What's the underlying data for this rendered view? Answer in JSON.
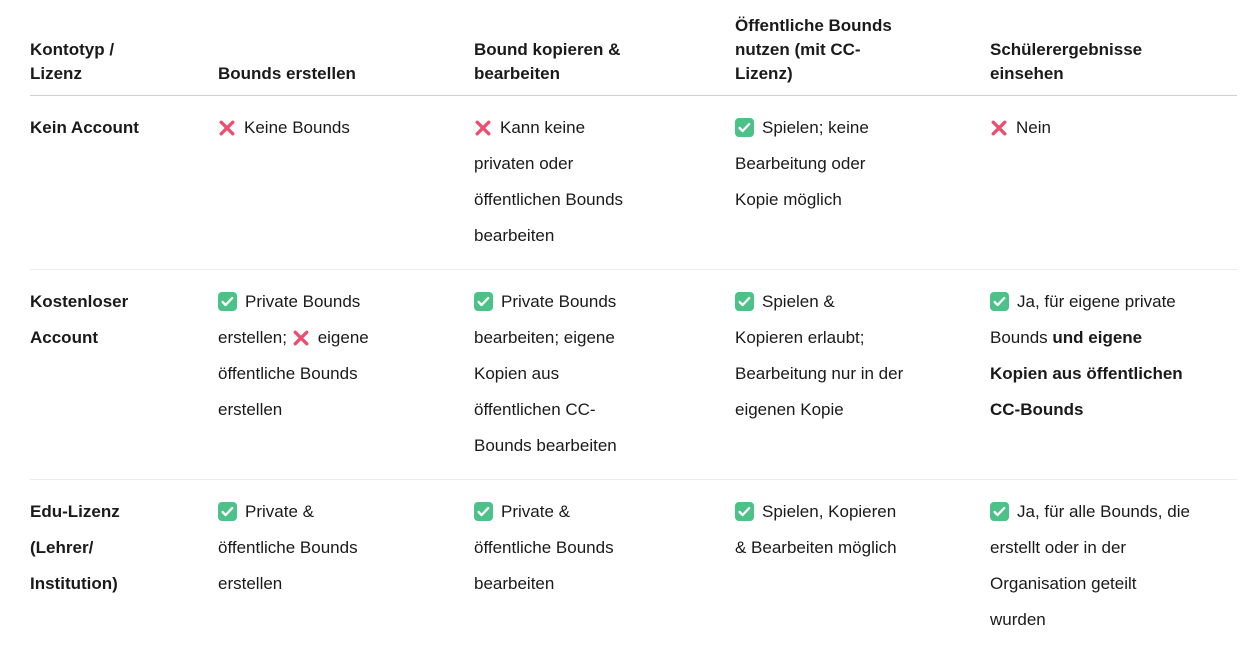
{
  "colors": {
    "background": "#ffffff",
    "text": "#1a1a1a",
    "header_border": "#d1d1d1",
    "row_border": "#ececec",
    "check_green": "#4cc289",
    "cross_red": "#ee4d6d"
  },
  "icons": {
    "check": "check-icon",
    "cross": "cross-icon"
  },
  "table": {
    "columns": [
      "Kontotyp /\nLizenz",
      "Bounds erstellen",
      "Bound kopieren &\nbearbeiten",
      "Öffentliche Bounds\nnutzen (mit CC-\nLizenz)",
      "Schülerergebnisse\neinsehen"
    ],
    "rows": [
      {
        "label": "Kein Account",
        "cells": [
          [
            {
              "icon": "cross"
            },
            {
              "text": "Keine Bounds"
            }
          ],
          [
            {
              "icon": "cross"
            },
            {
              "text": "Kann keine\nprivaten oder\nöffentlichen Bounds\nbearbeiten"
            }
          ],
          [
            {
              "icon": "check"
            },
            {
              "text": "Spielen; keine\nBearbeitung oder\nKopie möglich"
            }
          ],
          [
            {
              "icon": "cross"
            },
            {
              "text": "Nein"
            }
          ]
        ]
      },
      {
        "label": "Kostenloser\nAccount",
        "cells": [
          [
            {
              "icon": "check"
            },
            {
              "text": "Private Bounds\nerstellen; "
            },
            {
              "icon": "cross"
            },
            {
              "text": "eigene\nöffentliche Bounds\nerstellen"
            }
          ],
          [
            {
              "icon": "check"
            },
            {
              "text": "Private Bounds\nbearbeiten; eigene\nKopien aus\nöffentlichen CC-\nBounds bearbeiten"
            }
          ],
          [
            {
              "icon": "check"
            },
            {
              "text": "Spielen &\nKopieren erlaubt;\nBearbeitung nur in der\neigenen Kopie"
            }
          ],
          [
            {
              "icon": "check"
            },
            {
              "text": "Ja, für eigene private\nBounds "
            },
            {
              "text": "und eigene\nKopien aus öffentlichen\nCC-Bounds",
              "bold": true
            }
          ]
        ]
      },
      {
        "label": "Edu-Lizenz\n(Lehrer/\nInstitution)",
        "cells": [
          [
            {
              "icon": "check"
            },
            {
              "text": "Private &\nöffentliche Bounds\nerstellen"
            }
          ],
          [
            {
              "icon": "check"
            },
            {
              "text": "Private &\nöffentliche Bounds\nbearbeiten"
            }
          ],
          [
            {
              "icon": "check"
            },
            {
              "text": "Spielen, Kopieren\n& Bearbeiten möglich"
            }
          ],
          [
            {
              "icon": "check"
            },
            {
              "text": "Ja, für alle Bounds, die\nerstellt oder in der\nOrganisation geteilt\nwurden"
            }
          ]
        ]
      }
    ]
  }
}
